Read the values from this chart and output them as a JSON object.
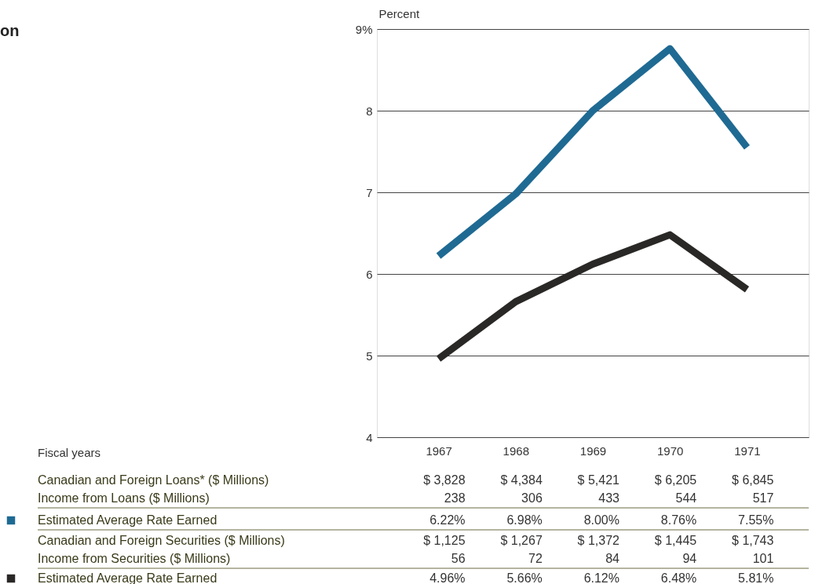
{
  "chart_data": {
    "type": "line",
    "title": "on",
    "ylabel": "Percent",
    "categories": [
      "1967",
      "1968",
      "1969",
      "1970",
      "1971"
    ],
    "series": [
      {
        "name": "Estimated Average Rate Earned",
        "color": "#1f6a93",
        "values": [
          6.22,
          6.98,
          8.0,
          8.76,
          7.55
        ],
        "value_labels": [
          "6.22%",
          "6.98%",
          "8.00%",
          "8.76%",
          "7.55%"
        ]
      },
      {
        "name": "Estimated Average Rate Earned",
        "color": "#2a2826",
        "values": [
          4.96,
          5.66,
          6.12,
          6.48,
          5.81
        ],
        "value_labels": [
          "4.96%",
          "5.66%",
          "6.12%",
          "6.48%",
          "5.81%"
        ]
      }
    ],
    "ylim": [
      4,
      9
    ],
    "yticks": [
      4,
      5,
      6,
      7,
      8,
      {
        "value": 9,
        "label": "9%"
      }
    ],
    "grid": "y",
    "marker": "none",
    "line_style": "solid",
    "legend": "bottom left",
    "annotations": [
      "Fiscal years",
      "Canadian and Foreign Loans* ($ Millions)",
      "$ 3,828",
      "$ 4,384",
      "$ 5,421",
      "$ 6,205",
      "$ 6,845",
      "Income from Loans ($ Millions)",
      "238",
      "306",
      "433",
      "544",
      "517",
      "Canadian and Foreign Securities ($ Millions)",
      "$ 1,125",
      "$ 1,267",
      "$ 1,372",
      "$ 1,445",
      "$ 1,743",
      "Income from Securities ($ Millions)",
      "56",
      "72",
      "84",
      "94",
      "101"
    ]
  }
}
